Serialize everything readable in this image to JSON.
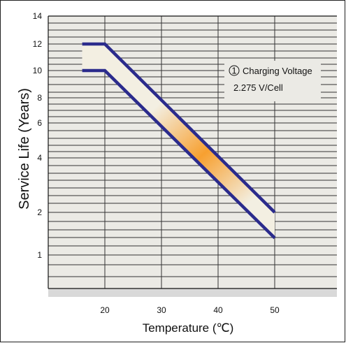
{
  "chart_data": {
    "type": "line",
    "title": "",
    "xlabel": "Temperature (℃)",
    "ylabel": "Service Life (Years)",
    "x_ticks": [
      20,
      30,
      40,
      50
    ],
    "y_ticks": [
      1,
      2,
      4,
      6,
      8,
      10,
      12,
      14
    ],
    "y_scale": "nonlinear",
    "xlim": [
      13,
      60
    ],
    "ylim": [
      0.6,
      14
    ],
    "series": [
      {
        "x": [
          16,
          20,
          50
        ],
        "y": [
          12,
          12,
          2
        ]
      },
      {
        "x": [
          16,
          20,
          50
        ],
        "y": [
          10,
          10,
          1.4
        ]
      }
    ],
    "annotation": {
      "marker": "1",
      "line1": "Charging Voltage",
      "line2": "2.275 V/Cell"
    },
    "colors": {
      "plot_background": "#ebeae5",
      "band_fill": "#f3efe2",
      "band_highlight": "#f7a030",
      "series_line": "#2b2b8c",
      "grid": "#333333"
    },
    "grid": true
  }
}
